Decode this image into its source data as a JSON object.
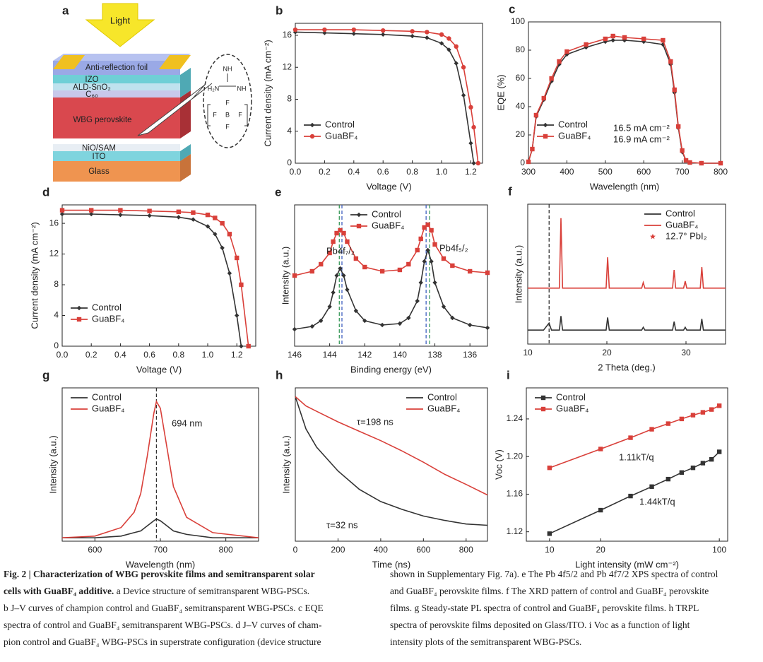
{
  "diagram": {
    "panel": "a",
    "light": "Light",
    "layers": [
      "Anti-reflection foil",
      "IZO",
      "ALD-SnO₂",
      "C₆₀",
      "WBG perovskite",
      "NiO/SAM",
      "ITO",
      "Glass"
    ],
    "molecule": [
      "NH",
      "H₂N",
      "NH",
      "F",
      "F",
      "B",
      "F",
      "F"
    ]
  },
  "chart_data": [
    {
      "type": "line",
      "panel": "b",
      "xlabel": "Voltage (V)",
      "ylabel": "Current density (mA cm⁻²)",
      "x": [
        0,
        0.2,
        0.4,
        0.6,
        0.8,
        0.9,
        1.0,
        1.05,
        1.1,
        1.15,
        1.2,
        1.22,
        1.25
      ],
      "series": [
        {
          "name": "Control",
          "color": "#333333",
          "marker": "diamond",
          "values": [
            16.4,
            16.3,
            16.2,
            16.1,
            15.9,
            15.7,
            15.0,
            14.2,
            12.5,
            8.5,
            2.5,
            0,
            null
          ]
        },
        {
          "name": "GuaBF₄",
          "color": "#d9403a",
          "marker": "circle",
          "values": [
            16.7,
            16.7,
            16.7,
            16.6,
            16.5,
            16.4,
            16.1,
            15.6,
            14.6,
            12.0,
            7.0,
            4.5,
            0
          ]
        }
      ],
      "xlim": [
        0,
        1.28
      ],
      "ylim": [
        0,
        17.5
      ],
      "xticks": [
        {
          "value": 0,
          "label": "0.0"
        },
        0.2,
        0.4,
        0.6,
        0.8,
        {
          "value": 1,
          "label": "1.0"
        },
        1.2
      ],
      "yticks": [
        0,
        4,
        8,
        12,
        16
      ],
      "legend": "lower left"
    },
    {
      "type": "line",
      "panel": "c",
      "xlabel": "Wavelength (nm)",
      "ylabel": "EQE (%)",
      "x": [
        300,
        310,
        320,
        340,
        360,
        380,
        400,
        450,
        500,
        520,
        550,
        600,
        650,
        670,
        680,
        690,
        700,
        710,
        720,
        750,
        800
      ],
      "series": [
        {
          "name": "Control",
          "color": "#333333",
          "marker": "diamond",
          "values": [
            1,
            10,
            33,
            45,
            58,
            70,
            77,
            82,
            86,
            87,
            87,
            86,
            84,
            70,
            50,
            25,
            8,
            2,
            0.5,
            0,
            0
          ]
        },
        {
          "name": "GuaBF₄",
          "color": "#d9403a",
          "marker": "square",
          "values": [
            1,
            10,
            34,
            46,
            60,
            72,
            79,
            84,
            88,
            90,
            89,
            88,
            87,
            72,
            52,
            26,
            9,
            2,
            0.5,
            0,
            0
          ]
        }
      ],
      "annotations": [
        "16.5  mA cm⁻²",
        "16.9  mA cm⁻²"
      ],
      "xlim": [
        300,
        800
      ],
      "ylim": [
        0,
        100
      ],
      "xticks": [
        300,
        400,
        500,
        600,
        700,
        800
      ],
      "yticks": [
        0,
        20,
        40,
        60,
        80,
        100
      ],
      "legend": "lower left"
    },
    {
      "type": "line",
      "panel": "d",
      "xlabel": "Voltage (V)",
      "ylabel": "Current density (mA cm⁻²)",
      "x": [
        0,
        0.2,
        0.4,
        0.6,
        0.8,
        0.9,
        1.0,
        1.05,
        1.1,
        1.15,
        1.2,
        1.23,
        1.28
      ],
      "series": [
        {
          "name": "Control",
          "color": "#333333",
          "marker": "diamond",
          "values": [
            17.2,
            17.2,
            17.1,
            17.0,
            16.8,
            16.5,
            15.6,
            14.6,
            12.8,
            9.5,
            4.0,
            0,
            null
          ]
        },
        {
          "name": "GuaBF₄",
          "color": "#d9403a",
          "marker": "square",
          "values": [
            17.7,
            17.7,
            17.7,
            17.6,
            17.5,
            17.4,
            17.1,
            16.7,
            16.0,
            14.6,
            11.5,
            8.0,
            0
          ]
        }
      ],
      "xlim": [
        0,
        1.33
      ],
      "ylim": [
        0,
        18.4
      ],
      "xticks": [
        {
          "value": 0,
          "label": "0.0"
        },
        0.2,
        0.4,
        0.6,
        0.8,
        {
          "value": 1,
          "label": "1.0"
        },
        1.2
      ],
      "yticks": [
        0,
        4,
        8,
        12,
        16
      ],
      "legend": "lower left"
    },
    {
      "type": "line",
      "panel": "e",
      "xlabel": "Binding energy (eV)",
      "ylabel": "Intensity (a.u.)",
      "x": [
        146,
        145,
        144.5,
        144,
        143.8,
        143.6,
        143.4,
        143.2,
        143,
        142.5,
        142,
        141,
        140,
        139.5,
        139,
        138.8,
        138.6,
        138.4,
        138.2,
        138,
        137.5,
        137,
        136,
        135
      ],
      "series": [
        {
          "name": "Control",
          "color": "#333333",
          "marker": "diamond",
          "values": [
            0.12,
            0.14,
            0.18,
            0.28,
            0.38,
            0.5,
            0.55,
            0.5,
            0.4,
            0.25,
            0.18,
            0.15,
            0.16,
            0.2,
            0.32,
            0.45,
            0.6,
            0.68,
            0.6,
            0.45,
            0.28,
            0.2,
            0.15,
            0.13
          ]
        },
        {
          "name": "GuaBF₄",
          "color": "#d9403a",
          "marker": "square",
          "values": [
            0.5,
            0.53,
            0.58,
            0.66,
            0.74,
            0.8,
            0.82,
            0.8,
            0.74,
            0.62,
            0.56,
            0.53,
            0.54,
            0.58,
            0.68,
            0.76,
            0.84,
            0.86,
            0.82,
            0.72,
            0.62,
            0.57,
            0.53,
            0.52
          ]
        }
      ],
      "annotations": [
        "Pb4f₇/₂",
        "Pb4f₅/₂"
      ],
      "vlines": [
        {
          "x": 143.45,
          "color": "#3a9a5a"
        },
        {
          "x": 143.3,
          "color": "#4060c0"
        },
        {
          "x": 138.5,
          "color": "#4060c0"
        },
        {
          "x": 138.3,
          "color": "#3a9a5a"
        }
      ],
      "xlim": [
        146,
        135
      ],
      "ylim": [
        0,
        1
      ],
      "xticks": [
        146,
        144,
        142,
        140,
        138,
        136
      ],
      "legend": "upper center"
    },
    {
      "type": "line",
      "panel": "f",
      "xlabel": "2 Theta (deg.)",
      "ylabel": "Intensity (a.u.)",
      "x": [
        10,
        12,
        12.7,
        13,
        14,
        14.2,
        14.4,
        16,
        19.9,
        20.1,
        20.3,
        22,
        24.4,
        24.6,
        24.8,
        27,
        28.3,
        28.5,
        28.7,
        29.7,
        29.9,
        30.1,
        31.8,
        32,
        32.2,
        35
      ],
      "series": [
        {
          "name": "Control",
          "color": "#333333",
          "values": [
            0.1,
            0.1,
            0.15,
            0.1,
            0.1,
            0.2,
            0.1,
            0.1,
            0.1,
            0.19,
            0.1,
            0.1,
            0.1,
            0.12,
            0.1,
            0.1,
            0.1,
            0.16,
            0.1,
            0.1,
            0.12,
            0.1,
            0.1,
            0.18,
            0.1,
            0.1
          ]
        },
        {
          "name": "GuaBF₄",
          "color": "#d9403a",
          "values": [
            0.4,
            0.4,
            0.4,
            0.4,
            0.4,
            0.9,
            0.4,
            0.4,
            0.4,
            0.62,
            0.4,
            0.4,
            0.4,
            0.44,
            0.4,
            0.4,
            0.4,
            0.53,
            0.4,
            0.4,
            0.45,
            0.4,
            0.4,
            0.55,
            0.4,
            0.4
          ]
        }
      ],
      "legend_extra": {
        "label": "12.7° PbI₂",
        "marker": "star",
        "color": "#d9403a"
      },
      "vlines": [
        {
          "x": 12.7,
          "color": "#333333"
        }
      ],
      "xlim": [
        10,
        35
      ],
      "ylim": [
        0,
        1
      ],
      "xticks": [
        10,
        20,
        30
      ],
      "legend": "upper right"
    },
    {
      "type": "line",
      "panel": "g",
      "xlabel": "Wavelength (nm)",
      "ylabel": "Intensity (a.u.)",
      "x": [
        550,
        600,
        640,
        660,
        670,
        680,
        690,
        694,
        700,
        710,
        720,
        740,
        780,
        850
      ],
      "series": [
        {
          "name": "Control",
          "color": "#333333",
          "values": [
            0.02,
            0.02,
            0.03,
            0.05,
            0.06,
            0.09,
            0.12,
            0.13,
            0.12,
            0.09,
            0.06,
            0.04,
            0.02,
            0.02
          ]
        },
        {
          "name": "GuaBF₄",
          "color": "#d9403a",
          "values": [
            0.02,
            0.03,
            0.08,
            0.17,
            0.28,
            0.5,
            0.75,
            0.82,
            0.78,
            0.55,
            0.32,
            0.14,
            0.05,
            0.02
          ]
        }
      ],
      "annotations": [
        "694 nm"
      ],
      "vlines": [
        {
          "x": 694,
          "color": "#333333"
        }
      ],
      "xlim": [
        550,
        850
      ],
      "ylim": [
        0,
        0.9
      ],
      "xticks": [
        600,
        700,
        800
      ],
      "legend": "upper left"
    },
    {
      "type": "line",
      "panel": "h",
      "xlabel": "Time (ns)",
      "ylabel": "Intensity (a.u.)",
      "ylog": true,
      "x": [
        0,
        50,
        100,
        200,
        300,
        400,
        500,
        600,
        700,
        800,
        900
      ],
      "series": [
        {
          "name": "Control",
          "color": "#333333",
          "values": [
            0.8,
            0.35,
            0.22,
            0.12,
            0.075,
            0.055,
            0.045,
            0.038,
            0.034,
            0.031,
            0.03
          ]
        },
        {
          "name": "GuaBF₄",
          "color": "#d9403a",
          "values": [
            0.8,
            0.63,
            0.55,
            0.42,
            0.33,
            0.26,
            0.2,
            0.15,
            0.11,
            0.085,
            0.065
          ]
        }
      ],
      "annotations": [
        "τ=198 ns",
        "τ=32 ns"
      ],
      "xlim": [
        0,
        900
      ],
      "ylim": [
        0.02,
        1
      ],
      "xticks": [
        0,
        200,
        400,
        600,
        800
      ],
      "legend": "upper right"
    },
    {
      "type": "line",
      "panel": "i",
      "xlabel": "Light intensity (mW cm⁻²)",
      "ylabel": "Voc (V)",
      "xlog": true,
      "x": [
        10,
        20,
        30,
        40,
        50,
        60,
        70,
        80,
        90,
        100
      ],
      "series": [
        {
          "name": "Control",
          "color": "#333333",
          "marker": "square",
          "values": [
            1.118,
            1.143,
            1.158,
            1.168,
            1.176,
            1.183,
            1.188,
            1.193,
            1.197,
            1.205
          ]
        },
        {
          "name": "GuaBF₄",
          "color": "#d9403a",
          "marker": "square",
          "values": [
            1.188,
            1.208,
            1.22,
            1.229,
            1.235,
            1.24,
            1.244,
            1.247,
            1.25,
            1.254
          ]
        }
      ],
      "annotations": [
        "1.11kT/q",
        "1.44kT/q"
      ],
      "xlim": [
        7.3,
        112
      ],
      "ylim": [
        1.11,
        1.273
      ],
      "xticks": [
        10,
        20,
        100
      ],
      "yticks": [
        1.12,
        1.16,
        {
          "value": 1.2,
          "label": "1.20"
        },
        1.24
      ],
      "legend": "upper left"
    }
  ],
  "caption": {
    "title": [
      "Fig. 2 | Characterization of WBG perovskite films and semitransparent solar",
      "cells with GuaBF₄ additive."
    ],
    "left": [
      " a Device structure of semitransparent WBG-PSCs.",
      "b J–V curves of champion control and GuaBF₄ semitransparent WBG-PSCs. c EQE",
      "spectra of control and GuaBF₄ semitransparent WBG-PSCs. d J–V curves of cham-",
      "pion control and GuaBF₄ WBG-PSCs in superstrate configuration (device structure"
    ],
    "right": [
      "shown in Supplementary Fig. 7a). e The Pb 4f5/2 and Pb 4f7/2 XPS spectra of control",
      "and GuaBF₄ perovskite films. f The XRD pattern of control and GuaBF₄ perovskite",
      "films. g Steady-state PL spectra of control and GuaBF₄ perovskite films. h TRPL",
      "spectra of perovskite films deposited on Glass/ITO. i Voc as a function of light",
      "intensity plots of the semitransparent WBG-PSCs."
    ]
  }
}
